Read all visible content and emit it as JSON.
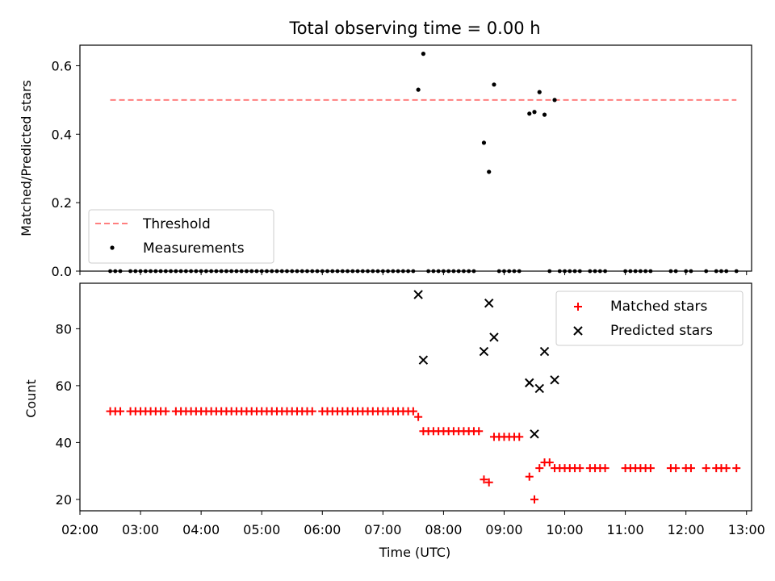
{
  "chart_data": [
    {
      "type": "scatter",
      "title": "Total observing time = 0.00 h",
      "xlabel": "",
      "ylabel": "Matched/Predicted stars",
      "xlim": [
        "02:00",
        "13:05"
      ],
      "ylim": [
        0,
        0.66
      ],
      "yticks": [
        "0.0",
        "0.2",
        "0.4",
        "0.6"
      ],
      "grid": false,
      "legend_position": "lower-left",
      "threshold": {
        "name": "Threshold",
        "value": 0.5,
        "color": "#ff7f7f",
        "style": "dashed",
        "x_range": [
          "02:30",
          "12:50"
        ]
      },
      "series": [
        {
          "name": "Measurements",
          "color": "#000000",
          "marker": "dot",
          "points": [
            {
              "x": "07:35",
              "y": 0.53
            },
            {
              "x": "07:40",
              "y": 0.635
            },
            {
              "x": "08:40",
              "y": 0.375
            },
            {
              "x": "08:45",
              "y": 0.29
            },
            {
              "x": "08:50",
              "y": 0.545
            },
            {
              "x": "09:25",
              "y": 0.46
            },
            {
              "x": "09:30",
              "y": 0.465
            },
            {
              "x": "09:35",
              "y": 0.523
            },
            {
              "x": "09:40",
              "y": 0.457
            },
            {
              "x": "09:50",
              "y": 0.5
            }
          ],
          "zero_times": [
            "02:30",
            "02:35",
            "02:40",
            "02:50",
            "02:55",
            "03:00",
            "03:05",
            "03:10",
            "03:15",
            "03:20",
            "03:25",
            "03:30",
            "03:35",
            "03:40",
            "03:45",
            "03:50",
            "03:55",
            "04:00",
            "04:05",
            "04:10",
            "04:15",
            "04:20",
            "04:25",
            "04:30",
            "04:35",
            "04:40",
            "04:45",
            "04:50",
            "04:55",
            "05:00",
            "05:05",
            "05:10",
            "05:15",
            "05:20",
            "05:25",
            "05:30",
            "05:35",
            "05:40",
            "05:45",
            "05:50",
            "05:55",
            "06:00",
            "06:05",
            "06:10",
            "06:15",
            "06:20",
            "06:25",
            "06:30",
            "06:35",
            "06:40",
            "06:45",
            "06:50",
            "06:55",
            "07:00",
            "07:05",
            "07:10",
            "07:15",
            "07:20",
            "07:25",
            "07:30",
            "07:45",
            "07:50",
            "07:55",
            "08:00",
            "08:05",
            "08:10",
            "08:15",
            "08:20",
            "08:25",
            "08:30",
            "08:55",
            "09:00",
            "09:05",
            "09:10",
            "09:15",
            "09:45",
            "09:55",
            "10:00",
            "10:05",
            "10:10",
            "10:15",
            "10:25",
            "10:30",
            "10:35",
            "10:40",
            "11:00",
            "11:05",
            "11:10",
            "11:15",
            "11:20",
            "11:25",
            "11:45",
            "11:50",
            "12:00",
            "12:05",
            "12:20",
            "12:30",
            "12:35",
            "12:40",
            "12:50"
          ]
        }
      ]
    },
    {
      "type": "scatter",
      "title": "",
      "xlabel": "Time (UTC)",
      "ylabel": "Count",
      "xlim": [
        "02:00",
        "13:05"
      ],
      "ylim": [
        16,
        96
      ],
      "yticks": [
        "20",
        "40",
        "60",
        "80"
      ],
      "xticks": [
        "02:00",
        "03:00",
        "04:00",
        "05:00",
        "06:00",
        "07:00",
        "08:00",
        "09:00",
        "10:00",
        "11:00",
        "12:00",
        "13:00"
      ],
      "grid": false,
      "legend_position": "upper-right",
      "series": [
        {
          "name": "Matched stars",
          "color": "#ff0000",
          "marker": "plus",
          "points": [
            {
              "x": "02:30",
              "y": 51
            },
            {
              "x": "02:35",
              "y": 51
            },
            {
              "x": "02:40",
              "y": 51
            },
            {
              "x": "02:50",
              "y": 51
            },
            {
              "x": "02:55",
              "y": 51
            },
            {
              "x": "03:00",
              "y": 51
            },
            {
              "x": "03:05",
              "y": 51
            },
            {
              "x": "03:10",
              "y": 51
            },
            {
              "x": "03:15",
              "y": 51
            },
            {
              "x": "03:20",
              "y": 51
            },
            {
              "x": "03:25",
              "y": 51
            },
            {
              "x": "03:35",
              "y": 51
            },
            {
              "x": "03:40",
              "y": 51
            },
            {
              "x": "03:45",
              "y": 51
            },
            {
              "x": "03:50",
              "y": 51
            },
            {
              "x": "03:55",
              "y": 51
            },
            {
              "x": "04:00",
              "y": 51
            },
            {
              "x": "04:05",
              "y": 51
            },
            {
              "x": "04:10",
              "y": 51
            },
            {
              "x": "04:15",
              "y": 51
            },
            {
              "x": "04:20",
              "y": 51
            },
            {
              "x": "04:25",
              "y": 51
            },
            {
              "x": "04:30",
              "y": 51
            },
            {
              "x": "04:35",
              "y": 51
            },
            {
              "x": "04:40",
              "y": 51
            },
            {
              "x": "04:45",
              "y": 51
            },
            {
              "x": "04:50",
              "y": 51
            },
            {
              "x": "04:55",
              "y": 51
            },
            {
              "x": "05:00",
              "y": 51
            },
            {
              "x": "05:05",
              "y": 51
            },
            {
              "x": "05:10",
              "y": 51
            },
            {
              "x": "05:15",
              "y": 51
            },
            {
              "x": "05:20",
              "y": 51
            },
            {
              "x": "05:25",
              "y": 51
            },
            {
              "x": "05:30",
              "y": 51
            },
            {
              "x": "05:35",
              "y": 51
            },
            {
              "x": "05:40",
              "y": 51
            },
            {
              "x": "05:45",
              "y": 51
            },
            {
              "x": "05:50",
              "y": 51
            },
            {
              "x": "06:00",
              "y": 51
            },
            {
              "x": "06:05",
              "y": 51
            },
            {
              "x": "06:10",
              "y": 51
            },
            {
              "x": "06:15",
              "y": 51
            },
            {
              "x": "06:20",
              "y": 51
            },
            {
              "x": "06:25",
              "y": 51
            },
            {
              "x": "06:30",
              "y": 51
            },
            {
              "x": "06:35",
              "y": 51
            },
            {
              "x": "06:40",
              "y": 51
            },
            {
              "x": "06:45",
              "y": 51
            },
            {
              "x": "06:50",
              "y": 51
            },
            {
              "x": "06:55",
              "y": 51
            },
            {
              "x": "07:00",
              "y": 51
            },
            {
              "x": "07:05",
              "y": 51
            },
            {
              "x": "07:10",
              "y": 51
            },
            {
              "x": "07:15",
              "y": 51
            },
            {
              "x": "07:20",
              "y": 51
            },
            {
              "x": "07:25",
              "y": 51
            },
            {
              "x": "07:30",
              "y": 51
            },
            {
              "x": "07:35",
              "y": 49
            },
            {
              "x": "07:40",
              "y": 44
            },
            {
              "x": "07:45",
              "y": 44
            },
            {
              "x": "07:50",
              "y": 44
            },
            {
              "x": "07:55",
              "y": 44
            },
            {
              "x": "08:00",
              "y": 44
            },
            {
              "x": "08:05",
              "y": 44
            },
            {
              "x": "08:10",
              "y": 44
            },
            {
              "x": "08:15",
              "y": 44
            },
            {
              "x": "08:20",
              "y": 44
            },
            {
              "x": "08:25",
              "y": 44
            },
            {
              "x": "08:30",
              "y": 44
            },
            {
              "x": "08:35",
              "y": 44
            },
            {
              "x": "08:40",
              "y": 27
            },
            {
              "x": "08:45",
              "y": 26
            },
            {
              "x": "08:50",
              "y": 42
            },
            {
              "x": "08:55",
              "y": 42
            },
            {
              "x": "09:00",
              "y": 42
            },
            {
              "x": "09:05",
              "y": 42
            },
            {
              "x": "09:10",
              "y": 42
            },
            {
              "x": "09:15",
              "y": 42
            },
            {
              "x": "09:25",
              "y": 28
            },
            {
              "x": "09:30",
              "y": 20
            },
            {
              "x": "09:35",
              "y": 31
            },
            {
              "x": "09:40",
              "y": 33
            },
            {
              "x": "09:45",
              "y": 33
            },
            {
              "x": "09:50",
              "y": 31
            },
            {
              "x": "09:55",
              "y": 31
            },
            {
              "x": "10:00",
              "y": 31
            },
            {
              "x": "10:05",
              "y": 31
            },
            {
              "x": "10:10",
              "y": 31
            },
            {
              "x": "10:15",
              "y": 31
            },
            {
              "x": "10:25",
              "y": 31
            },
            {
              "x": "10:30",
              "y": 31
            },
            {
              "x": "10:35",
              "y": 31
            },
            {
              "x": "10:40",
              "y": 31
            },
            {
              "x": "11:00",
              "y": 31
            },
            {
              "x": "11:05",
              "y": 31
            },
            {
              "x": "11:10",
              "y": 31
            },
            {
              "x": "11:15",
              "y": 31
            },
            {
              "x": "11:20",
              "y": 31
            },
            {
              "x": "11:25",
              "y": 31
            },
            {
              "x": "11:45",
              "y": 31
            },
            {
              "x": "11:50",
              "y": 31
            },
            {
              "x": "12:00",
              "y": 31
            },
            {
              "x": "12:05",
              "y": 31
            },
            {
              "x": "12:20",
              "y": 31
            },
            {
              "x": "12:30",
              "y": 31
            },
            {
              "x": "12:35",
              "y": 31
            },
            {
              "x": "12:40",
              "y": 31
            },
            {
              "x": "12:50",
              "y": 31
            }
          ]
        },
        {
          "name": "Predicted stars",
          "color": "#000000",
          "marker": "x",
          "points": [
            {
              "x": "07:35",
              "y": 92
            },
            {
              "x": "07:40",
              "y": 69
            },
            {
              "x": "08:40",
              "y": 72
            },
            {
              "x": "08:45",
              "y": 89
            },
            {
              "x": "08:50",
              "y": 77
            },
            {
              "x": "09:25",
              "y": 61
            },
            {
              "x": "09:30",
              "y": 43
            },
            {
              "x": "09:35",
              "y": 59
            },
            {
              "x": "09:40",
              "y": 72
            },
            {
              "x": "09:50",
              "y": 62
            }
          ]
        }
      ]
    }
  ]
}
